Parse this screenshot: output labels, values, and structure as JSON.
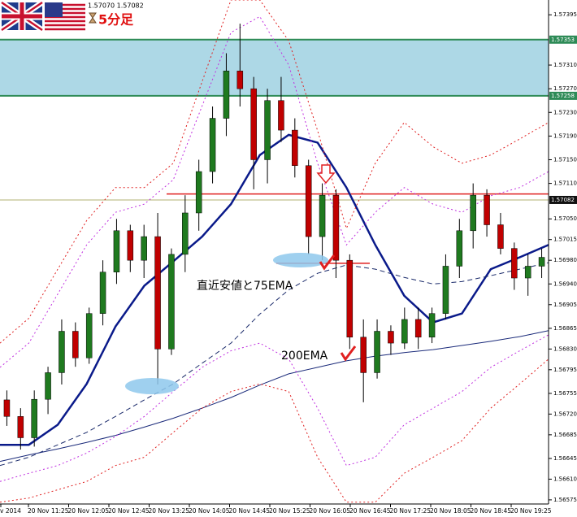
{
  "chart_data": {
    "type": "candlestick",
    "title": "5分足",
    "quote": "1.57070 1.57082",
    "ylim": [
      1.56568,
      1.5742
    ],
    "yticks": [
      {
        "value": 1.57395,
        "label": "1.57395"
      },
      {
        "value": 1.5731,
        "label": "1.57310"
      },
      {
        "value": 1.5727,
        "label": "1.57270"
      },
      {
        "value": 1.5723,
        "label": "1.57230"
      },
      {
        "value": 1.5719,
        "label": "1.57190"
      },
      {
        "value": 1.5715,
        "label": "1.57150"
      },
      {
        "value": 1.5711,
        "label": "1.57110"
      },
      {
        "value": 1.5705,
        "label": "1.57050"
      },
      {
        "value": 1.57015,
        "label": "1.57015"
      },
      {
        "value": 1.5698,
        "label": "1.56980"
      },
      {
        "value": 1.5694,
        "label": "1.56940"
      },
      {
        "value": 1.56905,
        "label": "1.56905"
      },
      {
        "value": 1.56865,
        "label": "1.56865"
      },
      {
        "value": 1.5683,
        "label": "1.56830"
      },
      {
        "value": 1.56795,
        "label": "1.56795"
      },
      {
        "value": 1.56755,
        "label": "1.56755"
      },
      {
        "value": 1.5672,
        "label": "1.56720"
      },
      {
        "value": 1.56685,
        "label": "1.56685"
      },
      {
        "value": 1.56645,
        "label": "1.56645"
      },
      {
        "value": 1.5661,
        "label": "1.56610"
      },
      {
        "value": 1.56575,
        "label": "1.56575"
      }
    ],
    "xlabels": [
      "v 2014",
      "20 Nov 11:25",
      "20 Nov 12:05",
      "20 Nov 12:45",
      "20 Nov 13:25",
      "20 Nov 14:05",
      "20 Nov 14:45",
      "20 Nov 15:25",
      "20 Nov 16:05",
      "20 Nov 16:45",
      "20 Nov 17:25",
      "20 Nov 18:05",
      "20 Nov 18:45",
      "20 Nov 19:25"
    ],
    "zone": [
      {
        "value": 1.57353,
        "label": "1.57353"
      },
      {
        "value": 1.57258,
        "label": "1.57258"
      }
    ],
    "current": {
      "value": 1.57082,
      "label": "1.57082"
    },
    "resistance": 1.57092,
    "recent_low": 1.56975,
    "annotations": [
      "直近安値と75EMA",
      "200EMA"
    ],
    "up_color": "#1f7a1f",
    "down_color": "#c00000",
    "candles": [
      [
        1.56744,
        1.5676,
        1.567,
        1.56716
      ],
      [
        1.56716,
        1.5673,
        1.5666,
        1.5668
      ],
      [
        1.5668,
        1.5676,
        1.56665,
        1.56745
      ],
      [
        1.56745,
        1.568,
        1.5672,
        1.5679
      ],
      [
        1.5679,
        1.5688,
        1.5677,
        1.5686
      ],
      [
        1.5686,
        1.56875,
        1.568,
        1.56815
      ],
      [
        1.56815,
        1.569,
        1.56805,
        1.5689
      ],
      [
        1.5689,
        1.5698,
        1.5687,
        1.5696
      ],
      [
        1.5696,
        1.5705,
        1.5694,
        1.5703
      ],
      [
        1.5703,
        1.5704,
        1.5696,
        1.5698
      ],
      [
        1.5698,
        1.5704,
        1.5695,
        1.5702
      ],
      [
        1.5702,
        1.5706,
        1.5677,
        1.5683
      ],
      [
        1.5683,
        1.57,
        1.5682,
        1.5699
      ],
      [
        1.5699,
        1.5709,
        1.5696,
        1.5706
      ],
      [
        1.5706,
        1.5715,
        1.5703,
        1.5713
      ],
      [
        1.5713,
        1.5724,
        1.5711,
        1.5722
      ],
      [
        1.5722,
        1.5733,
        1.5719,
        1.573
      ],
      [
        1.573,
        1.5738,
        1.5724,
        1.5727
      ],
      [
        1.5727,
        1.5729,
        1.571,
        1.5715
      ],
      [
        1.5715,
        1.5727,
        1.5711,
        1.5725
      ],
      [
        1.5725,
        1.5729,
        1.5718,
        1.572
      ],
      [
        1.572,
        1.5722,
        1.5712,
        1.5714
      ],
      [
        1.5714,
        1.5715,
        1.5699,
        1.5702
      ],
      [
        1.5702,
        1.5711,
        1.5698,
        1.5709
      ],
      [
        1.5709,
        1.571,
        1.5695,
        1.5698
      ],
      [
        1.5698,
        1.5699,
        1.5683,
        1.5685
      ],
      [
        1.5685,
        1.5688,
        1.5674,
        1.5679
      ],
      [
        1.5679,
        1.5688,
        1.5678,
        1.5686
      ],
      [
        1.5686,
        1.5687,
        1.5682,
        1.5684
      ],
      [
        1.5684,
        1.569,
        1.5683,
        1.5688
      ],
      [
        1.5688,
        1.569,
        1.5683,
        1.5685
      ],
      [
        1.5685,
        1.569,
        1.5684,
        1.5689
      ],
      [
        1.5689,
        1.5699,
        1.5688,
        1.5697
      ],
      [
        1.5697,
        1.5705,
        1.5695,
        1.5703
      ],
      [
        1.5703,
        1.5711,
        1.57,
        1.5709
      ],
      [
        1.5709,
        1.571,
        1.5702,
        1.5704
      ],
      [
        1.5704,
        1.5706,
        1.5699,
        1.57
      ],
      [
        1.57,
        1.5701,
        1.5693,
        1.5695
      ],
      [
        1.5695,
        1.5699,
        1.5692,
        1.5697
      ],
      [
        1.5697,
        1.57,
        1.5695,
        1.56985
      ]
    ],
    "series": [
      {
        "color": "#0a1a8a",
        "width": 2.5,
        "dash": "",
        "values": [
          1.56668,
          1.56668,
          1.56702,
          1.56771,
          1.56868,
          1.56937,
          1.56978,
          1.5702,
          1.57075,
          1.57158,
          1.57192,
          1.57179,
          1.57103,
          1.57006,
          1.5692,
          1.56875,
          1.5689,
          1.56965,
          1.56985,
          1.57006
        ]
      },
      {
        "color": "#1a2a6a",
        "width": 1,
        "dash": "6 4",
        "values": [
          1.56633,
          1.56647,
          1.56668,
          1.56689,
          1.56716,
          1.56744,
          1.56771,
          1.56806,
          1.5684,
          1.56889,
          1.5693,
          1.56958,
          1.56972,
          1.56965,
          1.56951,
          1.5694,
          1.56944,
          1.56954,
          1.56965,
          1.56976
        ]
      },
      {
        "color": "#1a2a7a",
        "width": 1,
        "dash": "",
        "values": [
          1.5664,
          1.56651,
          1.56661,
          1.56672,
          1.56684,
          1.56698,
          1.56713,
          1.5673,
          1.56748,
          1.56769,
          1.56788,
          1.56799,
          1.5681,
          1.56818,
          1.56824,
          1.56829,
          1.56836,
          1.56843,
          1.56851,
          1.56861
        ]
      },
      {
        "color": "#e02020",
        "width": 1,
        "dash": "2 3",
        "values": [
          1.5684,
          1.56882,
          1.56965,
          1.57047,
          1.57103,
          1.57103,
          1.57144,
          1.57282,
          1.5742,
          1.5742,
          1.57351,
          1.57199,
          1.57034,
          1.57144,
          1.57213,
          1.57172,
          1.57144,
          1.57158,
          1.57185,
          1.57213
        ]
      },
      {
        "color": "#e02020",
        "width": 1,
        "dash": "2 3",
        "values": [
          1.56571,
          1.56578,
          1.56592,
          1.56606,
          1.56633,
          1.56647,
          1.56689,
          1.5673,
          1.56758,
          1.56771,
          1.56758,
          1.56647,
          1.56571,
          1.56571,
          1.5662,
          1.56647,
          1.56675,
          1.5673,
          1.56771,
          1.56813
        ]
      },
      {
        "color": "#c030e0",
        "width": 1,
        "dash": "2 3",
        "values": [
          1.56799,
          1.5684,
          1.56923,
          1.57006,
          1.57061,
          1.57075,
          1.57116,
          1.57241,
          1.57365,
          1.57392,
          1.5731,
          1.57144,
          1.57006,
          1.57061,
          1.57103,
          1.57075,
          1.57061,
          1.57089,
          1.57103,
          1.5713
        ]
      },
      {
        "color": "#c030e0",
        "width": 1,
        "dash": "2 3",
        "values": [
          1.56606,
          1.5662,
          1.56633,
          1.56654,
          1.56682,
          1.56716,
          1.56758,
          1.56799,
          1.56827,
          1.5684,
          1.56813,
          1.5673,
          1.56633,
          1.56647,
          1.56702,
          1.5673,
          1.56758,
          1.56799,
          1.56827,
          1.56854
        ]
      }
    ]
  }
}
